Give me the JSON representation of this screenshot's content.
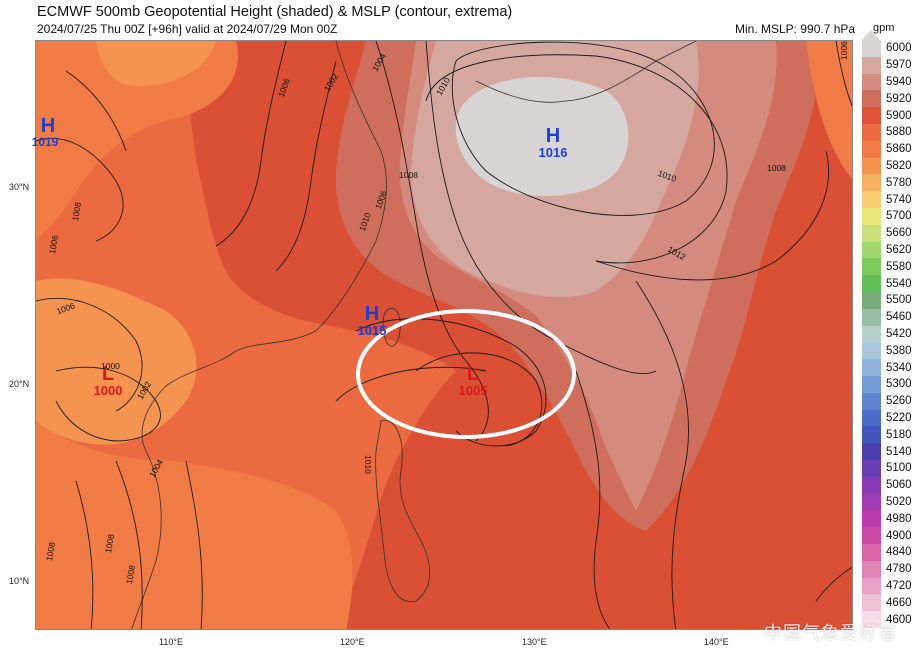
{
  "header": {
    "title": "ECMWF 500mb Geopotential Height (shaded) & MSLP (contour, extrema)",
    "subtitle": "2024/07/25 Thu 00Z [+96h] valid at 2024/07/29 Mon 00Z",
    "min_mslp": "Min. MSLP: 990.7 hPa",
    "unit": "gpm"
  },
  "axes": {
    "lat_labels": [
      "30°N",
      "20°N",
      "10°N"
    ],
    "lon_labels": [
      "110°E",
      "120°E",
      "130°E",
      "140°E"
    ]
  },
  "extrema": {
    "h1": {
      "letter": "H",
      "value": "1019"
    },
    "h2": {
      "letter": "H",
      "value": "1016"
    },
    "h3": {
      "letter": "H",
      "value": "1015"
    },
    "l1": {
      "letter": "L",
      "value": "1000"
    },
    "l2": {
      "letter": "L",
      "value": "1005"
    }
  },
  "contour_labels": [
    "1004",
    "1002",
    "1006",
    "1010",
    "1008",
    "1010",
    "1012",
    "1008",
    "1010",
    "1006",
    "1000",
    "1002",
    "1004",
    "1006",
    "1008",
    "1006",
    "1010",
    "1008",
    "1008",
    "1008",
    "1006"
  ],
  "colorbar": {
    "labels": [
      "6000",
      "5970",
      "5940",
      "5920",
      "5900",
      "5880",
      "5860",
      "5820",
      "5780",
      "5740",
      "5700",
      "5660",
      "5620",
      "5580",
      "5540",
      "5500",
      "5460",
      "5420",
      "5380",
      "5340",
      "5300",
      "5260",
      "5220",
      "5180",
      "5140",
      "5100",
      "5060",
      "5020",
      "4980",
      "4900",
      "4840",
      "4780",
      "4720",
      "4660",
      "4600"
    ],
    "colors": [
      "#d9d4d4",
      "#d4a89f",
      "#d48a7c",
      "#cf6e5c",
      "#e0533a",
      "#ec6a40",
      "#f17b45",
      "#f49450",
      "#f7b061",
      "#f6cb72",
      "#e9e77a",
      "#c7e07a",
      "#9fd66c",
      "#7ccc5b",
      "#5fbe55",
      "#76ad7a",
      "#98bfa6",
      "#b7d0cd",
      "#a9c6de",
      "#8eb3dc",
      "#739dd7",
      "#5d85d1",
      "#4a6dc8",
      "#3f56bd",
      "#4a3fb0",
      "#6a3db3",
      "#8a3ab5",
      "#a13ab5",
      "#bb3aae",
      "#cd48a7",
      "#d964a8",
      "#e283b5",
      "#e9a2c5",
      "#f0c0d6",
      "#f7dbe8"
    ]
  },
  "watermark": "中国气象爱好者"
}
